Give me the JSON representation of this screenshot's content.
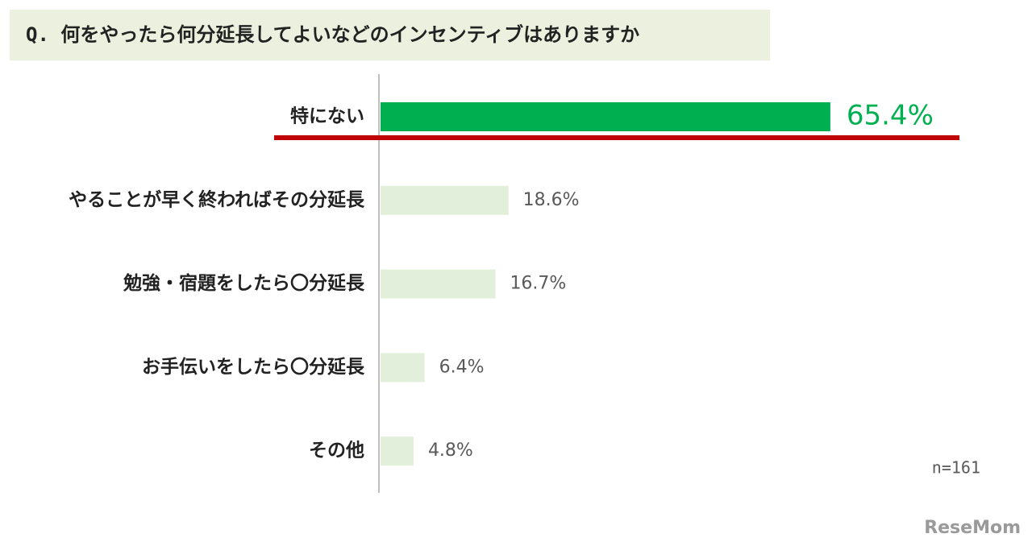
{
  "chart_data": {
    "type": "hbar",
    "title": "Q. 何をやったら何分延長してよいなどのインセンティブはありますか",
    "categories": [
      "特にない",
      "やることが早く終わればその分延長",
      "勉強・宿題をしたら〇分延長",
      "お手伝いをしたら〇分延長",
      "その他"
    ],
    "values": [
      65.4,
      18.6,
      16.7,
      6.4,
      4.8
    ],
    "value_labels": [
      "65.4%",
      "18.6%",
      "16.7%",
      "6.4%",
      "4.8%"
    ],
    "colors": [
      "#00b050",
      "#e2efda",
      "#e2efda",
      "#e2efda",
      "#e2efda"
    ],
    "label_colors": [
      "#00b050",
      "#595959",
      "#595959",
      "#595959",
      "#595959"
    ],
    "note": "n=161",
    "watermark": "ReseMom"
  }
}
